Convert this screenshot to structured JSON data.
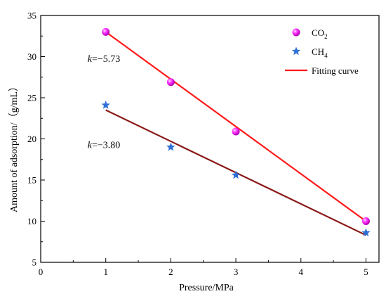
{
  "chart_data": {
    "type": "scatter",
    "xlabel": "Pressure/MPa",
    "ylabel": "Amount of adsorption/（g/mL）",
    "xlim": [
      0,
      5.2
    ],
    "ylim": [
      5,
      35
    ],
    "xticks": [
      0,
      1,
      2,
      3,
      4,
      5
    ],
    "yticks": [
      5,
      10,
      15,
      20,
      25,
      30,
      35
    ],
    "grid": false,
    "legend_position": "top-right",
    "series": [
      {
        "name": "CO",
        "subscript": "2",
        "marker": "sphere",
        "color": "#ff33ff",
        "x": [
          1,
          2,
          3,
          5
        ],
        "y": [
          33.0,
          26.9,
          20.9,
          10.0
        ]
      },
      {
        "name": "CH",
        "subscript": "4",
        "marker": "star",
        "color": "#2f6fd6",
        "x": [
          1,
          2,
          3,
          5
        ],
        "y": [
          24.1,
          19.0,
          15.6,
          8.6
        ]
      }
    ],
    "fits": [
      {
        "name": "Fitting curve",
        "color": "#ff1a1a",
        "x": [
          1,
          5
        ],
        "y": [
          33.0,
          10.0
        ]
      },
      {
        "name": "",
        "color": "#8b1a1a",
        "x": [
          1,
          5
        ],
        "y": [
          23.5,
          8.3
        ]
      }
    ],
    "annotations": [
      {
        "k_symbol": "k",
        "value": "=−5.73",
        "x": 0.72,
        "y": 29.8
      },
      {
        "k_symbol": "k",
        "value": "=−3.80",
        "x": 0.72,
        "y": 19.3
      }
    ]
  }
}
